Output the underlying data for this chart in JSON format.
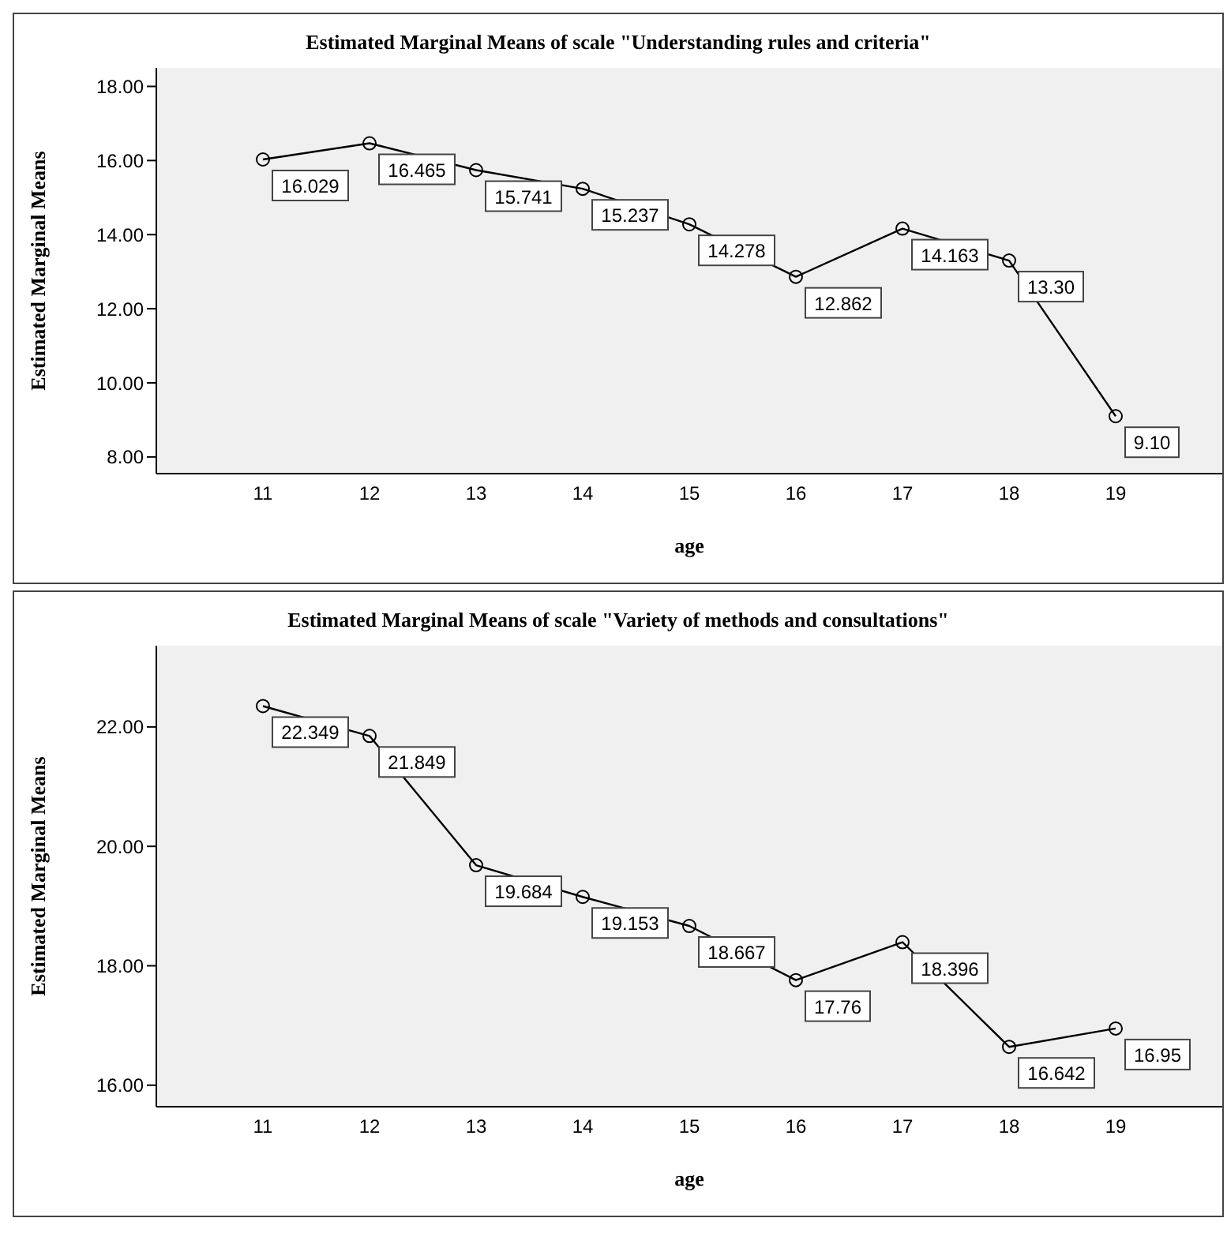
{
  "chart_data": [
    {
      "type": "line",
      "title": "Estimated Marginal Means of scale \"Understanding rules and criteria\"",
      "xlabel": "age",
      "ylabel": "Estimated Marginal Means",
      "categories": [
        "11",
        "12",
        "13",
        "14",
        "15",
        "16",
        "17",
        "18",
        "19"
      ],
      "series": [
        {
          "color": "#000000",
          "values": [
            16.029,
            16.465,
            15.741,
            15.237,
            14.278,
            12.862,
            14.163,
            13.3,
            9.1
          ],
          "value_labels": [
            "16.029",
            "16.465",
            "15.741",
            "15.237",
            "14.278",
            "12.862",
            "14.163",
            "13.30",
            "9.10"
          ]
        }
      ],
      "ylim": [
        7.55,
        18.5
      ],
      "yticks": [
        {
          "value": 8,
          "label": "8.00"
        },
        {
          "value": 10,
          "label": "10.00"
        },
        {
          "value": 12,
          "label": "12.00"
        },
        {
          "value": 14,
          "label": "14.00"
        },
        {
          "value": 16,
          "label": "16.00"
        },
        {
          "value": 18,
          "label": "18.00"
        }
      ],
      "grid": false,
      "legend": false,
      "marker": "circle",
      "line_style": "solid"
    },
    {
      "type": "line",
      "title": "Estimated Marginal Means of scale \"Variety of methods and consultations\"",
      "xlabel": "age",
      "ylabel": "Estimated Marginal Means",
      "categories": [
        "11",
        "12",
        "13",
        "14",
        "15",
        "16",
        "17",
        "18",
        "19"
      ],
      "series": [
        {
          "color": "#000000",
          "values": [
            22.349,
            21.849,
            19.684,
            19.153,
            18.667,
            17.76,
            18.396,
            16.642,
            16.95
          ],
          "value_labels": [
            "22.349",
            "21.849",
            "19.684",
            "19.153",
            "18.667",
            "17.76",
            "18.396",
            "16.642",
            "16.95"
          ]
        }
      ],
      "ylim": [
        15.64,
        23.36
      ],
      "yticks": [
        {
          "value": 16,
          "label": "16.00"
        },
        {
          "value": 18,
          "label": "18.00"
        },
        {
          "value": 20,
          "label": "20.00"
        },
        {
          "value": 22,
          "label": "22.00"
        }
      ],
      "grid": false,
      "legend": false,
      "marker": "circle",
      "line_style": "solid"
    }
  ]
}
